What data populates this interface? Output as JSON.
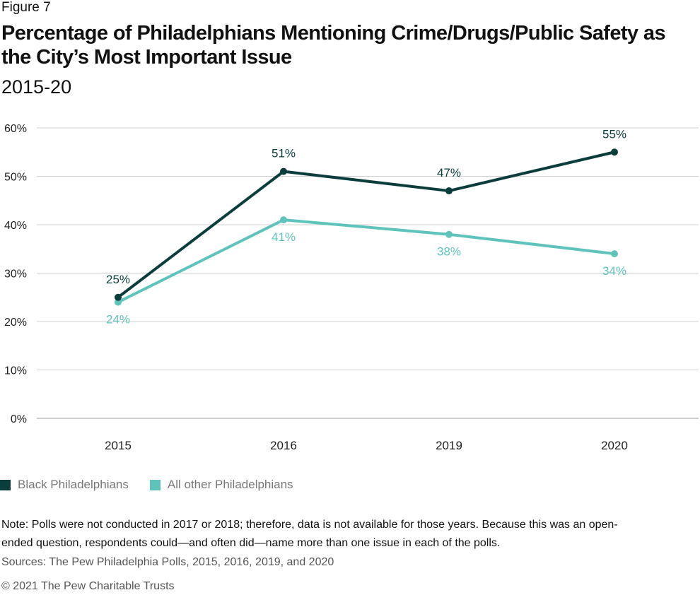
{
  "figure_label": "Figure 7",
  "title": "Percentage of Philadelphians Mentioning Crime/Drugs/Public Safety as the City’s Most Important Issue",
  "subtitle": "2015-20",
  "chart_data": {
    "type": "line",
    "x": [
      "2015",
      "2016",
      "2019",
      "2020"
    ],
    "ylim": [
      0,
      60
    ],
    "yticks": [
      "0%",
      "10%",
      "20%",
      "30%",
      "40%",
      "50%",
      "60%"
    ],
    "ytick_values": [
      0,
      10,
      20,
      30,
      40,
      50,
      60
    ],
    "grid": true,
    "legend_position": "bottom-left",
    "series": [
      {
        "name": "Black Philadelphians",
        "color": "#0b3d3d",
        "values": [
          25,
          51,
          47,
          55
        ],
        "labels": [
          "25%",
          "51%",
          "47%",
          "55%"
        ],
        "label_color": "#0b3d3d"
      },
      {
        "name": "All other Philadelphians",
        "color": "#5ec4bb",
        "values": [
          24,
          41,
          38,
          34
        ],
        "labels": [
          "24%",
          "41%",
          "38%",
          "34%"
        ],
        "label_color": "#5ec4bb"
      }
    ]
  },
  "note": "Note: Polls were not conducted in 2017 or 2018; therefore, data is not available for those years. Because this was an open-ended question, respondents could—and often did—name more than one issue in each of the polls.",
  "sources": "Sources: The Pew Philadelphia Polls, 2015, 2016, 2019, and 2020",
  "copyright": "© 2021 The Pew Charitable Trusts"
}
